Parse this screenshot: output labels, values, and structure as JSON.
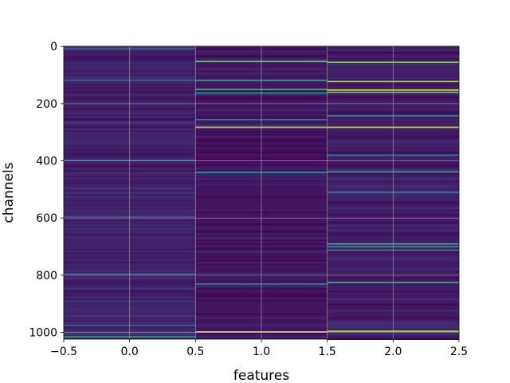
{
  "chart_data": {
    "type": "heatmap",
    "xlabel": "features",
    "ylabel": "channels",
    "colormap": "viridis",
    "grid": true,
    "grid_color": "#b0b0b0",
    "background_color": "#3b0f5a",
    "xlim": [
      -0.5,
      2.5
    ],
    "ylim": [
      1023.5,
      -0.5
    ],
    "x_ticks": [
      {
        "value": -0.5,
        "label": "−0.5"
      },
      {
        "value": 0.0,
        "label": "0.0"
      },
      {
        "value": 0.5,
        "label": "0.5"
      },
      {
        "value": 1.0,
        "label": "1.0"
      },
      {
        "value": 1.5,
        "label": "1.5"
      },
      {
        "value": 2.0,
        "label": "2.0"
      },
      {
        "value": 2.5,
        "label": "2.5"
      }
    ],
    "y_ticks": [
      {
        "value": 0,
        "label": "0"
      },
      {
        "value": 200,
        "label": "200"
      },
      {
        "value": 400,
        "label": "400"
      },
      {
        "value": 600,
        "label": "600"
      },
      {
        "value": 800,
        "label": "800"
      },
      {
        "value": 1000,
        "label": "1000"
      }
    ],
    "columns": [
      {
        "feature": 0,
        "baseline": 0.1,
        "highlights": [
          {
            "channel": 8,
            "value": 0.35
          },
          {
            "channel": 118,
            "value": 0.3
          },
          {
            "channel": 398,
            "value": 0.32
          },
          {
            "channel": 595,
            "value": 0.28
          },
          {
            "channel": 795,
            "value": 0.3
          },
          {
            "channel": 975,
            "value": 0.3
          },
          {
            "channel": 1015,
            "value": 0.55
          }
        ]
      },
      {
        "feature": 1,
        "baseline": 0.06,
        "highlights": [
          {
            "channel": 52,
            "value": 0.75
          },
          {
            "channel": 118,
            "value": 0.55
          },
          {
            "channel": 150,
            "value": 0.6
          },
          {
            "channel": 162,
            "value": 0.5
          },
          {
            "channel": 255,
            "value": 0.45
          },
          {
            "channel": 282,
            "value": 0.85
          },
          {
            "channel": 440,
            "value": 0.5
          },
          {
            "channel": 830,
            "value": 0.45
          },
          {
            "channel": 998,
            "value": 0.95
          }
        ]
      },
      {
        "feature": 2,
        "baseline": 0.08,
        "highlights": [
          {
            "channel": 55,
            "value": 0.8
          },
          {
            "channel": 122,
            "value": 0.85
          },
          {
            "channel": 152,
            "value": 0.9
          },
          {
            "channel": 160,
            "value": 0.75
          },
          {
            "channel": 242,
            "value": 0.5
          },
          {
            "channel": 282,
            "value": 0.9
          },
          {
            "channel": 380,
            "value": 0.45
          },
          {
            "channel": 438,
            "value": 0.55
          },
          {
            "channel": 510,
            "value": 0.4
          },
          {
            "channel": 690,
            "value": 0.6
          },
          {
            "channel": 700,
            "value": 0.55
          },
          {
            "channel": 712,
            "value": 0.5
          },
          {
            "channel": 825,
            "value": 0.6
          },
          {
            "channel": 995,
            "value": 0.85
          }
        ]
      }
    ]
  }
}
